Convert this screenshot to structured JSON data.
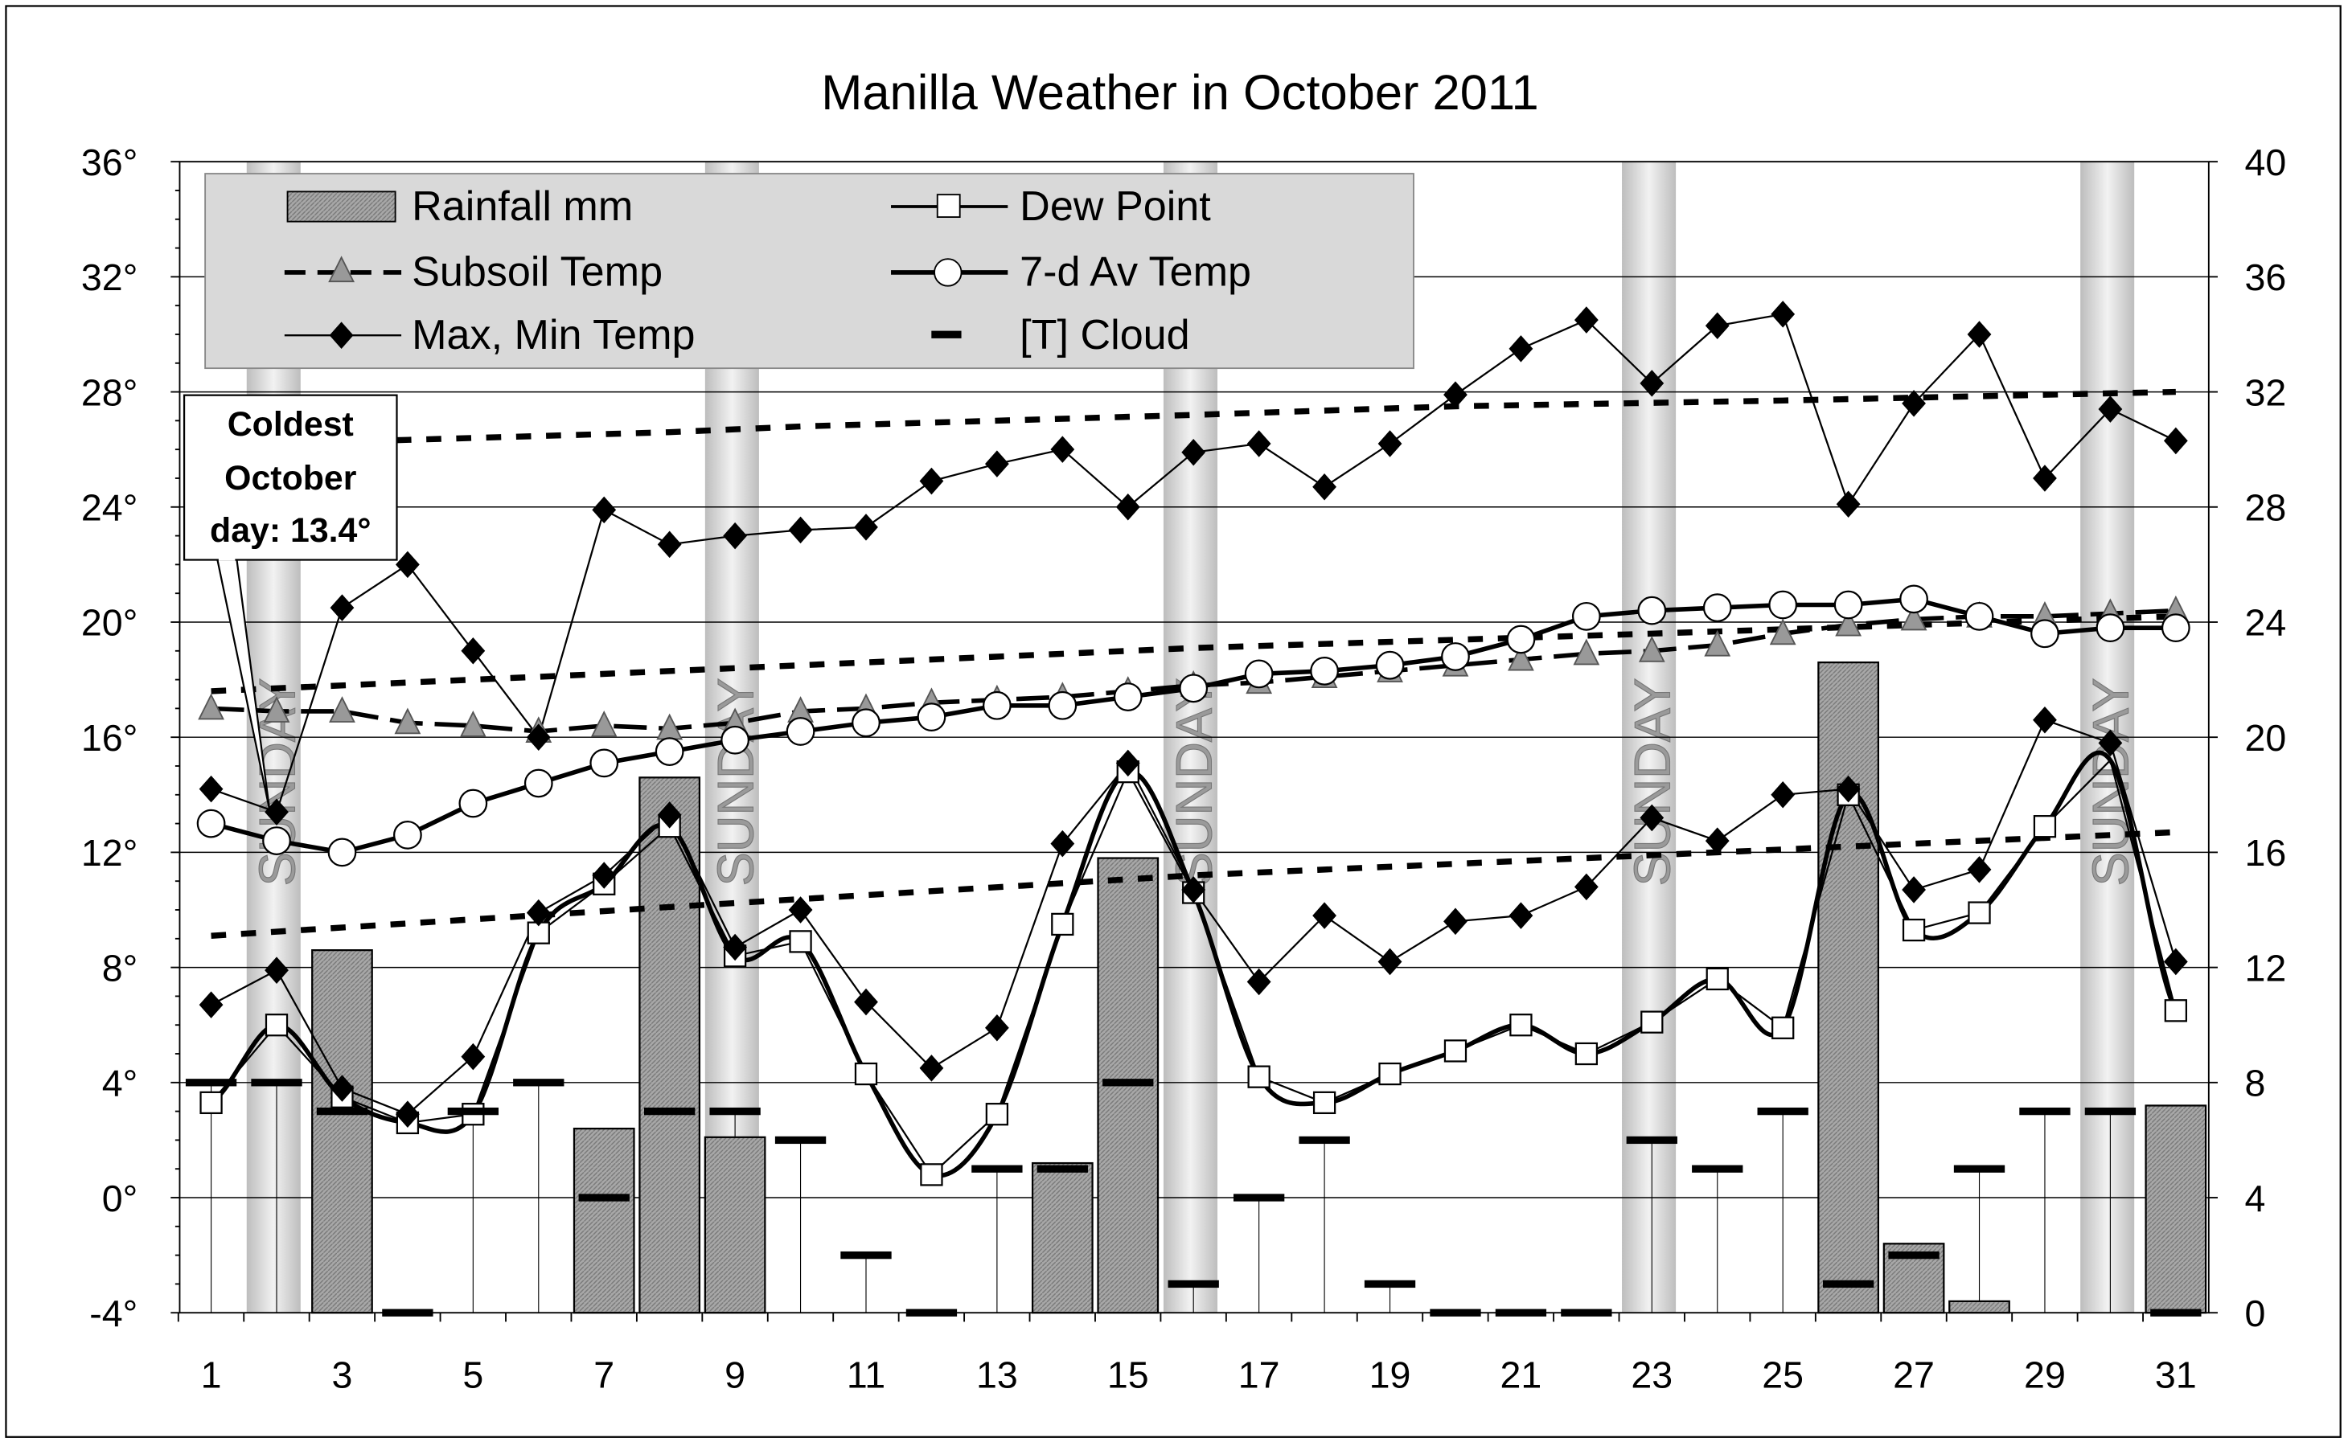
{
  "chart_data": {
    "type": "line",
    "title": "Manilla Weather in October 2011",
    "x": [
      1,
      2,
      3,
      4,
      5,
      6,
      7,
      8,
      9,
      10,
      11,
      12,
      13,
      14,
      15,
      16,
      17,
      18,
      19,
      20,
      21,
      22,
      23,
      24,
      25,
      26,
      27,
      28,
      29,
      30,
      31
    ],
    "x_ticks": [
      "1",
      "3",
      "5",
      "7",
      "9",
      "11",
      "13",
      "15",
      "17",
      "19",
      "21",
      "23",
      "25",
      "27",
      "29",
      "31"
    ],
    "y_left": {
      "range": [
        -4,
        36
      ],
      "ticks": [
        "-4°",
        "0°",
        "4°",
        "8°",
        "12°",
        "16°",
        "20°",
        "24°",
        "28°",
        "32°",
        "36°"
      ]
    },
    "y_right": {
      "range": [
        0,
        40
      ],
      "ticks": [
        "0",
        "4",
        "8",
        "12",
        "16",
        "20",
        "24",
        "28",
        "32",
        "36",
        "40"
      ]
    },
    "grid": true,
    "legend_position": "top-left",
    "sundays": [
      2,
      9,
      16,
      23,
      30
    ],
    "sunday_label": "SUNDAY",
    "annotation": {
      "lines": [
        "Coldest",
        "October",
        "day: 13.4°"
      ],
      "day": 2
    },
    "series": [
      {
        "name": "Rainfall mm",
        "type": "bar",
        "axis": "right",
        "values": [
          0,
          0,
          12.6,
          0,
          0,
          0,
          6.4,
          18.6,
          6.1,
          0,
          0,
          0,
          0,
          5.2,
          15.8,
          0,
          0,
          0,
          0,
          0,
          0,
          0,
          0,
          0,
          0,
          22.6,
          2.4,
          0.4,
          0,
          0,
          7.2
        ]
      },
      {
        "name": "Dew Point",
        "axis": "left",
        "values": [
          3.3,
          6.0,
          3.5,
          2.6,
          2.9,
          9.2,
          10.9,
          12.9,
          8.4,
          8.9,
          4.3,
          0.8,
          2.9,
          9.5,
          14.8,
          10.6,
          4.2,
          3.3,
          4.3,
          5.1,
          6.0,
          5.0,
          6.1,
          7.6,
          5.9,
          14.0,
          9.3,
          9.9,
          12.9,
          15.2,
          6.5
        ]
      },
      {
        "name": "Subsoil Temp",
        "axis": "left",
        "values": [
          17.0,
          16.9,
          16.9,
          16.5,
          16.4,
          16.2,
          16.4,
          16.3,
          16.5,
          16.9,
          17.0,
          17.2,
          17.3,
          17.4,
          17.6,
          17.8,
          17.9,
          18.1,
          18.3,
          18.5,
          18.7,
          18.9,
          19.0,
          19.2,
          19.6,
          19.9,
          20.1,
          20.2,
          20.2,
          20.3,
          20.4
        ]
      },
      {
        "name": "7-d Av Temp",
        "axis": "left",
        "values": [
          13.0,
          12.4,
          12.0,
          12.6,
          13.7,
          14.4,
          15.1,
          15.5,
          15.9,
          16.2,
          16.5,
          16.7,
          17.1,
          17.1,
          17.4,
          17.7,
          18.2,
          18.3,
          18.5,
          18.8,
          19.4,
          20.2,
          20.4,
          20.5,
          20.6,
          20.6,
          20.8,
          20.2,
          19.6,
          19.8,
          19.8
        ]
      },
      {
        "name": "Max, Min Temp",
        "axis": "left",
        "max": [
          14.2,
          13.4,
          20.5,
          22.0,
          19.0,
          16.0,
          23.9,
          22.7,
          23.0,
          23.2,
          23.3,
          24.9,
          25.5,
          26.0,
          24.0,
          25.9,
          26.2,
          24.7,
          26.2,
          27.9,
          29.5,
          30.5,
          28.3,
          30.3,
          30.7,
          24.1,
          27.6,
          30.0,
          25.0,
          27.4,
          26.3
        ],
        "min": [
          6.7,
          7.9,
          3.8,
          2.9,
          4.9,
          9.9,
          11.2,
          13.3,
          8.7,
          10.0,
          6.8,
          4.5,
          5.9,
          12.3,
          15.1,
          10.7,
          7.5,
          9.8,
          8.2,
          9.6,
          9.8,
          10.8,
          13.2,
          12.4,
          14.0,
          14.2,
          10.7,
          11.4,
          16.6,
          15.8,
          8.2
        ]
      },
      {
        "name": "[T] Cloud",
        "axis": "left",
        "values": [
          4,
          4,
          3,
          -4,
          3,
          4,
          0,
          3,
          3,
          2,
          -2,
          -4,
          1,
          1,
          4,
          -3,
          0,
          2,
          -3,
          -4,
          -4,
          -4,
          2,
          1,
          3,
          -3,
          -2,
          1,
          3,
          3,
          -4
        ]
      }
    ],
    "reference_lines": [
      {
        "x": [
          2,
          5,
          8,
          10,
          16,
          20,
          25,
          31
        ],
        "y": [
          26.2,
          26.4,
          26.6,
          26.8,
          27.2,
          27.5,
          27.7,
          28.0
        ]
      },
      {
        "x": [
          1,
          9,
          16,
          23,
          31
        ],
        "y": [
          17.6,
          18.4,
          19.1,
          19.6,
          20.2
        ]
      },
      {
        "x": [
          1,
          8,
          16,
          24,
          31
        ],
        "y": [
          9.1,
          10.1,
          11.2,
          12.0,
          12.7
        ]
      }
    ]
  }
}
